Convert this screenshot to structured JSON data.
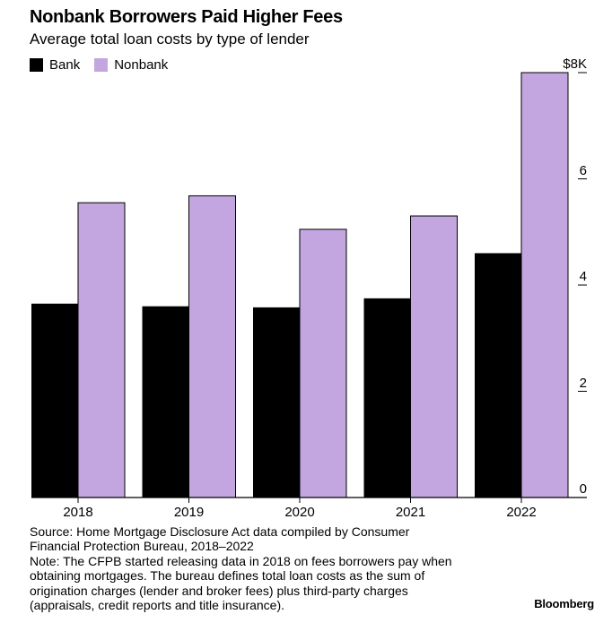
{
  "colors": {
    "bank": "#000000",
    "nonbank": "#c3a6e0",
    "axis": "#000000"
  },
  "chart_data": {
    "type": "bar",
    "title": "Nonbank Borrowers Paid Higher Fees",
    "subtitle": "Average total loan costs by type of lender",
    "categories": [
      "2018",
      "2019",
      "2020",
      "2021",
      "2022"
    ],
    "series": [
      {
        "name": "Bank",
        "values": [
          3.65,
          3.6,
          3.58,
          3.75,
          4.6
        ]
      },
      {
        "name": "Nonbank",
        "values": [
          5.55,
          5.68,
          5.05,
          5.3,
          8.0
        ]
      }
    ],
    "ylim": [
      0,
      8
    ],
    "yticks": [
      0,
      2,
      4,
      6,
      8
    ],
    "ytick_labels": [
      "0",
      "2",
      "4",
      "6",
      "$8K"
    ],
    "legend_position": "top-left",
    "y_axis_side": "right",
    "grid": false
  },
  "footer": {
    "source_lines": [
      "Source: Home Mortgage Disclosure Act data compiled by Consumer",
      "Financial Protection Bureau, 2018–2022",
      "Note: The CFPB started releasing data in 2018 on fees borrowers pay when",
      "obtaining mortgages. The bureau defines total loan costs as the sum of",
      "origination charges (lender and broker fees) plus third-party charges",
      "(appraisals, credit reports and title insurance)."
    ],
    "brand": "Bloomberg"
  }
}
